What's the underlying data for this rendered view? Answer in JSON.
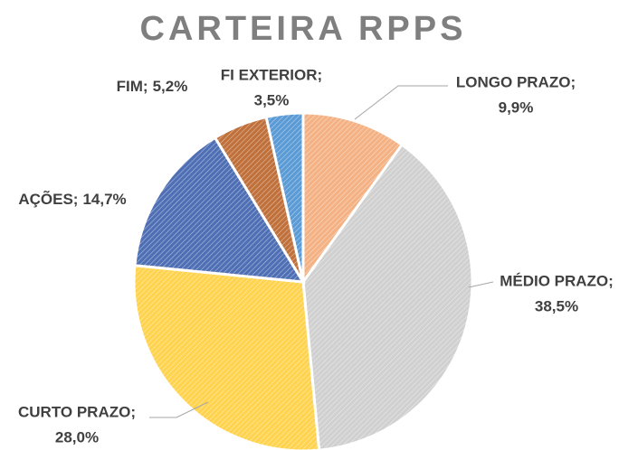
{
  "chart_data": {
    "type": "pie",
    "title": "CARTEIRA RPPS",
    "categories": [
      "LONGO PRAZO;",
      "MÉDIO PRAZO;",
      "CURTO PRAZO;",
      "AÇÕES;",
      "FIM;",
      "FI EXTERIOR;"
    ],
    "values": [
      9.9,
      38.5,
      28.0,
      14.7,
      5.2,
      3.5
    ],
    "value_labels": [
      "9,9%",
      "38,5%",
      "28,0%",
      "14,7%",
      "5,2%",
      "3,5%"
    ],
    "colors": [
      "#f4b183",
      "#d0d0d0",
      "#ffd34d",
      "#4f6fb5",
      "#c0703a",
      "#5b9bd5"
    ]
  }
}
